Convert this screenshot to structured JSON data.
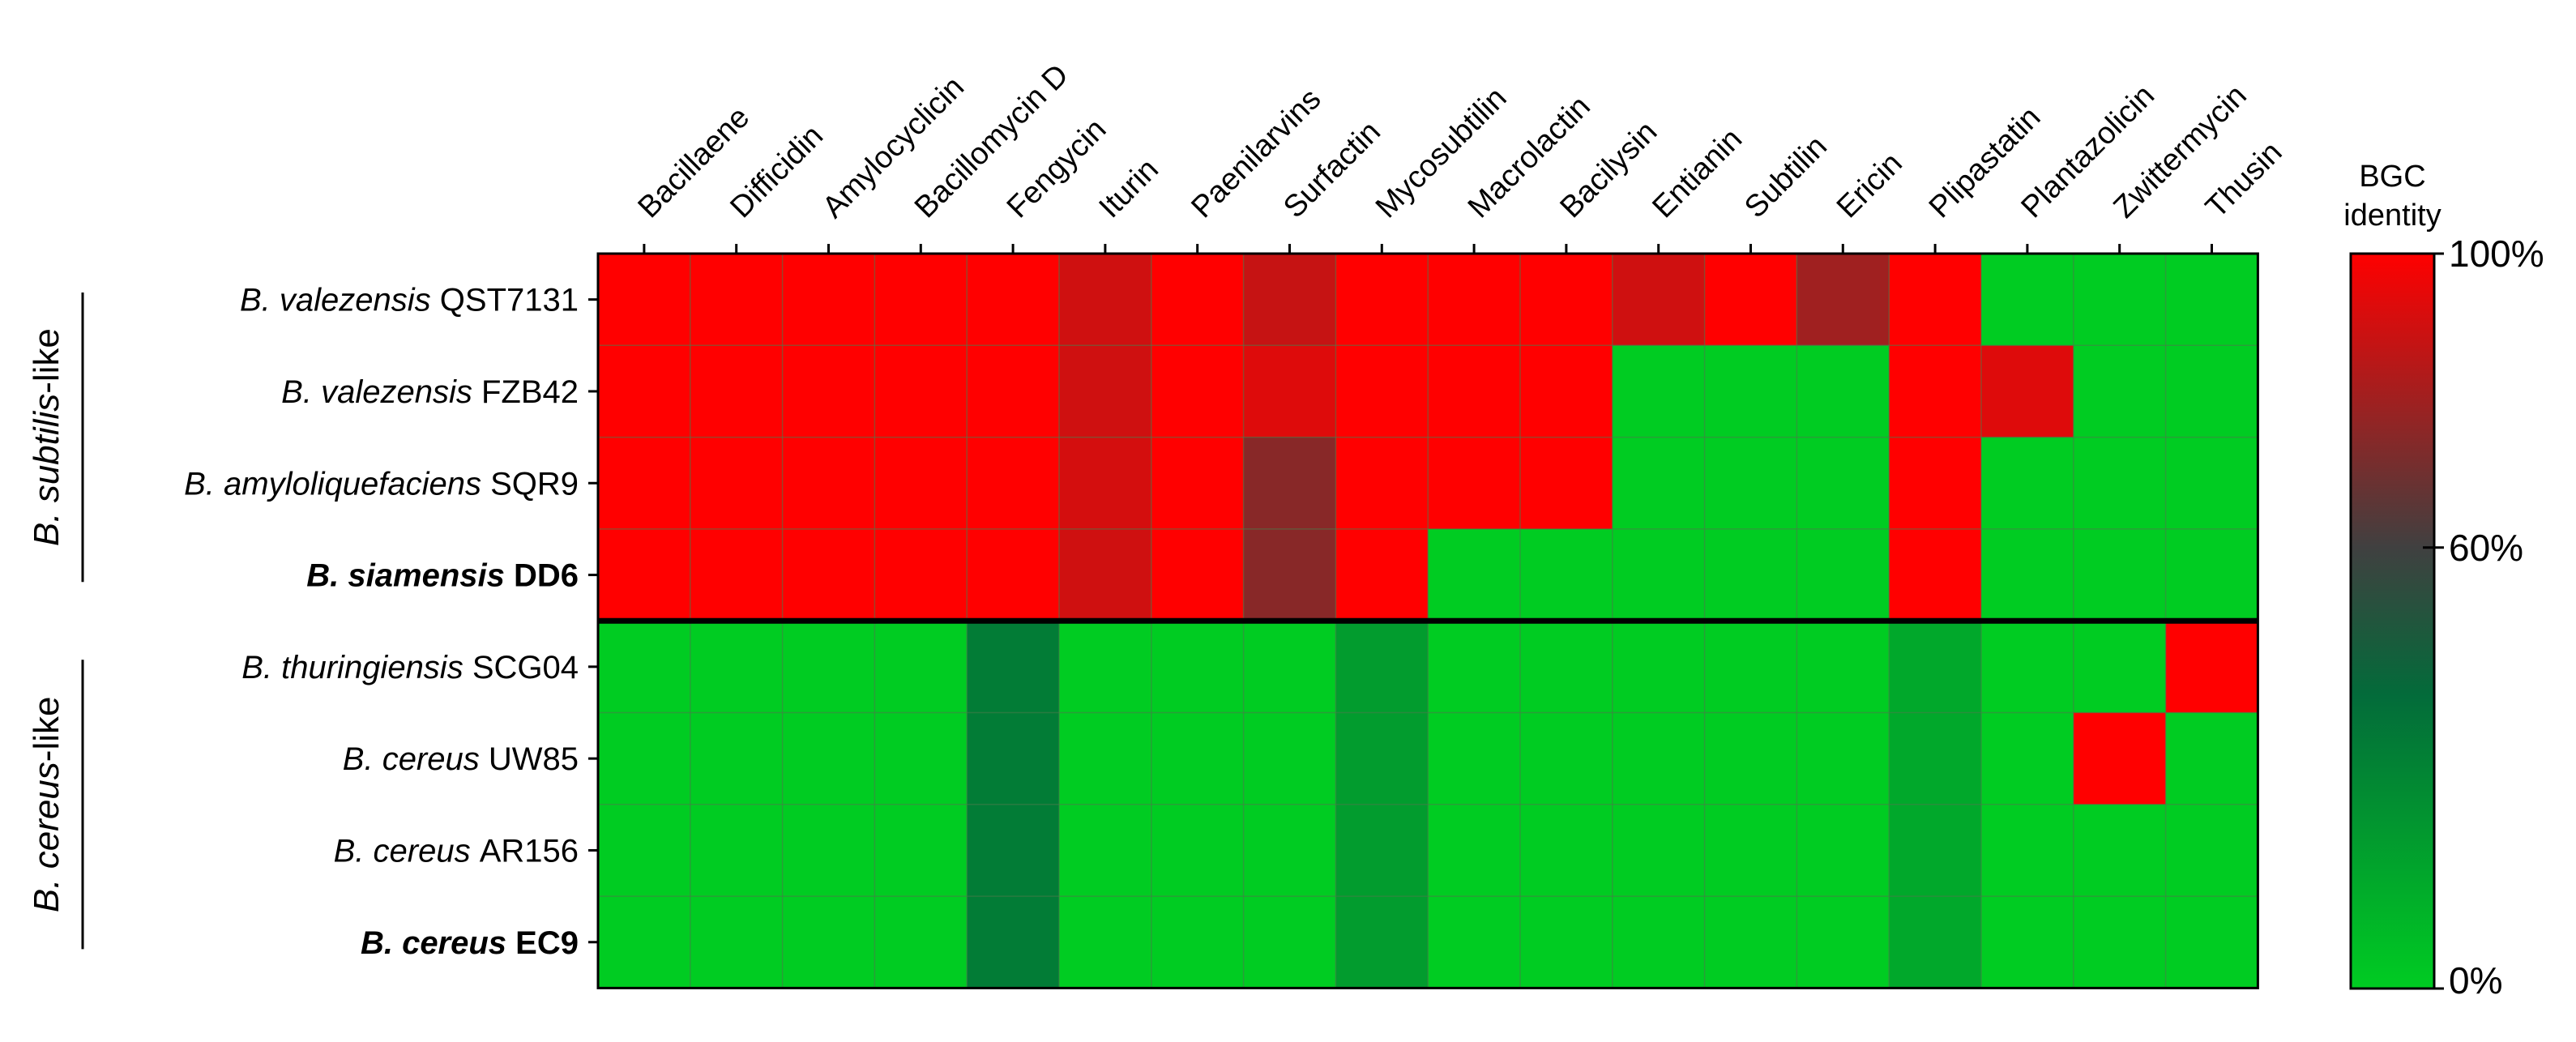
{
  "chart_data": {
    "type": "heatmap",
    "title": "",
    "xlabel": "",
    "ylabel": "",
    "columns": [
      "Bacillaene",
      "Difficidin",
      "Amylocyclicin",
      "Bacillomycin D",
      "Fengycin",
      "Iturin",
      "Paenilarvins",
      "Surfactin",
      "Mycosubtilin",
      "Macrolactin",
      "Bacilysin",
      "Entianin",
      "Subtilin",
      "Ericin",
      "Plipastatin",
      "Plantazolicin",
      "Zwittermycin",
      "Thusin"
    ],
    "rows": [
      {
        "genus": "B.",
        "species": "valezensis",
        "strain": "QST7131",
        "bold": false
      },
      {
        "genus": "B.",
        "species": "valezensis",
        "strain": "FZB42",
        "bold": false
      },
      {
        "genus": "B.",
        "species": "amyloliquefaciens",
        "strain": "SQR9",
        "bold": false
      },
      {
        "genus": "B.",
        "species": "siamensis",
        "strain": "DD6",
        "bold": true
      },
      {
        "genus": "B.",
        "species": "thuringiensis",
        "strain": "SCG04",
        "bold": false
      },
      {
        "genus": "B.",
        "species": "cereus",
        "strain": "UW85",
        "bold": false
      },
      {
        "genus": "B.",
        "species": "cereus",
        "strain": "AR156",
        "bold": false
      },
      {
        "genus": "B.",
        "species": "cereus",
        "strain": "EC9",
        "bold": true
      }
    ],
    "values": [
      [
        100,
        100,
        100,
        100,
        100,
        90,
        100,
        88,
        100,
        100,
        100,
        90,
        100,
        80,
        100,
        0,
        0,
        0
      ],
      [
        100,
        100,
        100,
        100,
        100,
        90,
        100,
        93,
        100,
        100,
        100,
        0,
        0,
        0,
        100,
        93,
        0,
        0
      ],
      [
        100,
        100,
        100,
        100,
        100,
        91,
        100,
        75,
        100,
        100,
        100,
        0,
        0,
        0,
        100,
        0,
        0,
        0
      ],
      [
        100,
        100,
        100,
        100,
        100,
        90,
        100,
        75,
        100,
        0,
        0,
        0,
        0,
        0,
        100,
        0,
        0,
        0
      ],
      [
        0,
        0,
        0,
        0,
        33,
        0,
        0,
        0,
        20,
        0,
        0,
        0,
        0,
        0,
        15,
        0,
        0,
        100
      ],
      [
        0,
        0,
        0,
        0,
        33,
        0,
        0,
        0,
        20,
        0,
        0,
        0,
        0,
        0,
        15,
        0,
        100,
        0
      ],
      [
        0,
        0,
        0,
        0,
        33,
        0,
        0,
        0,
        20,
        0,
        0,
        0,
        0,
        0,
        15,
        0,
        0,
        0
      ],
      [
        0,
        0,
        0,
        0,
        33,
        0,
        0,
        0,
        20,
        0,
        0,
        0,
        0,
        0,
        15,
        0,
        0,
        0
      ]
    ],
    "groups": [
      {
        "label_italic": "B. subtilis",
        "label_suffix": "-like",
        "rows": [
          0,
          3
        ]
      },
      {
        "label_italic": "B. cereus",
        "label_suffix": "-like",
        "rows": [
          4,
          7
        ]
      }
    ],
    "colorbar": {
      "title_line1": "BGC",
      "title_line2": "identity",
      "ticks": [
        {
          "value": 100,
          "label": "100%"
        },
        {
          "value": 60,
          "label": "60%"
        },
        {
          "value": 0,
          "label": "0%"
        }
      ],
      "stops": [
        {
          "value": 0,
          "color": "#00cc22"
        },
        {
          "value": 40,
          "color": "#036b3a"
        },
        {
          "value": 60,
          "color": "#404040"
        },
        {
          "value": 100,
          "color": "#ff0000"
        }
      ]
    },
    "colors": {
      "grid_line": "#4a7a4a",
      "separator": "#000000",
      "border": "#000000"
    }
  }
}
